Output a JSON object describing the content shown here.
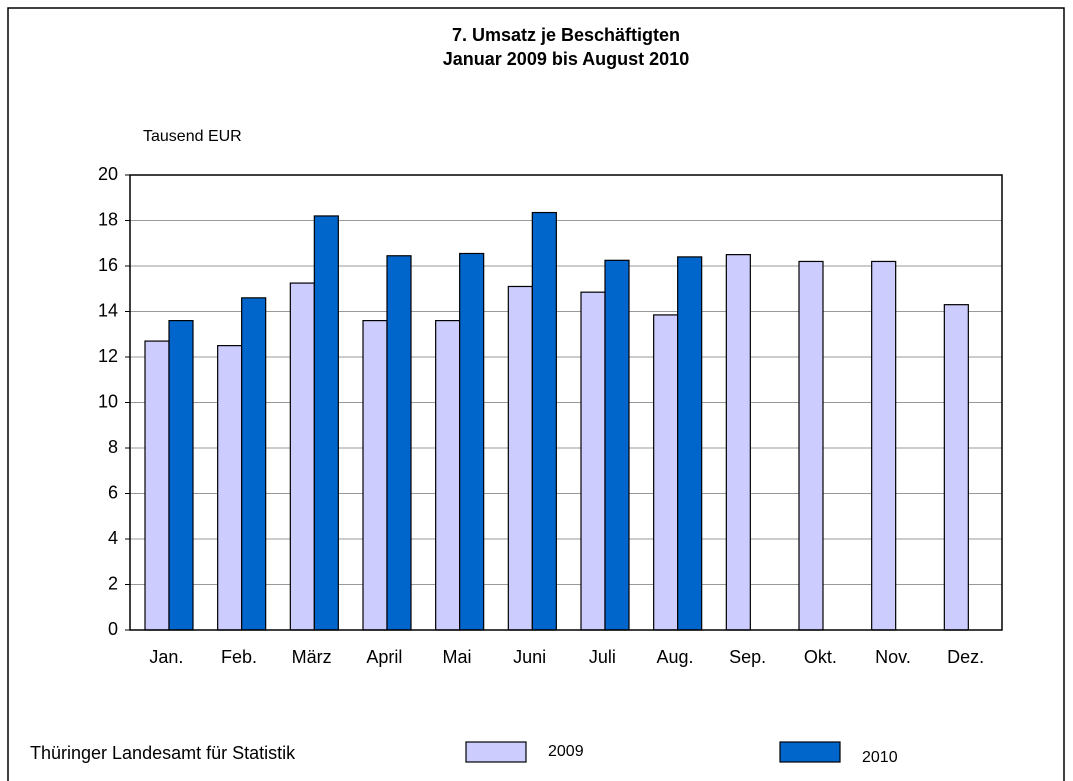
{
  "chart_data": {
    "type": "bar",
    "title": "7. Umsatz je Beschäftigten",
    "subtitle": "Januar 2009 bis August 2010",
    "ylabel": "Tausend EUR",
    "source": "Thüringer Landesamt für Statistik",
    "categories": [
      "Jan.",
      "Feb.",
      "März",
      "April",
      "Mai",
      "Juni",
      "Juli",
      "Aug.",
      "Sep.",
      "Okt.",
      "Nov.",
      "Dez."
    ],
    "series": [
      {
        "name": "2009",
        "color": "#ccccff",
        "values": [
          12.7,
          12.5,
          15.25,
          13.6,
          13.6,
          15.1,
          14.85,
          13.85,
          16.5,
          16.2,
          16.2,
          14.3
        ]
      },
      {
        "name": "2010",
        "color": "#0066cc",
        "values": [
          13.6,
          14.6,
          18.2,
          16.45,
          16.55,
          18.35,
          16.25,
          16.4,
          null,
          null,
          null,
          null
        ]
      }
    ],
    "ylim": [
      0,
      20
    ],
    "yticks": [
      0,
      2,
      4,
      6,
      8,
      10,
      12,
      14,
      16,
      18,
      20
    ],
    "grid": true
  }
}
